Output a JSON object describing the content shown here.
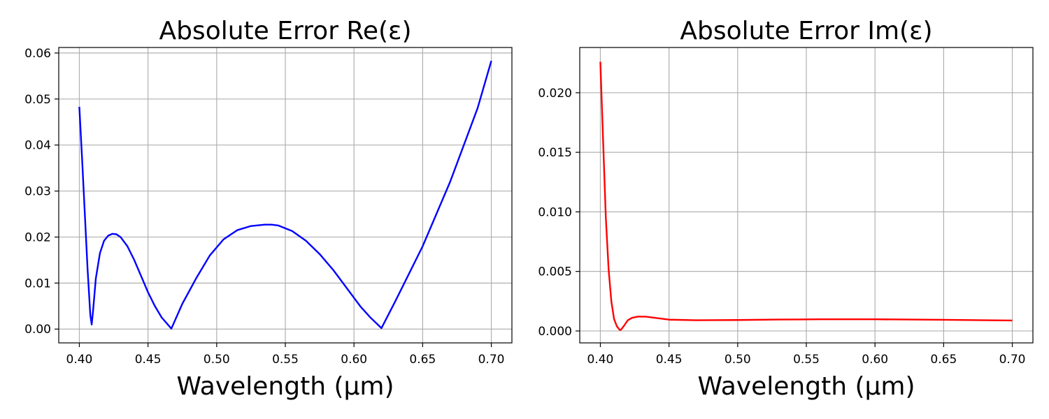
{
  "chart_data": [
    {
      "type": "line",
      "title": "Absolute Error Re(ε)",
      "xlabel": "Wavelength (µm)",
      "ylabel": "",
      "xlim": [
        0.385,
        0.715
      ],
      "ylim": [
        -0.003,
        0.0612
      ],
      "xticks": [
        0.4,
        0.45,
        0.5,
        0.55,
        0.6,
        0.65,
        0.7
      ],
      "xtick_labels": [
        "0.40",
        "0.45",
        "0.50",
        "0.55",
        "0.60",
        "0.65",
        "0.70"
      ],
      "yticks": [
        0.0,
        0.01,
        0.02,
        0.03,
        0.04,
        0.05,
        0.06
      ],
      "ytick_labels": [
        "0.00",
        "0.01",
        "0.02",
        "0.03",
        "0.04",
        "0.05",
        "0.06"
      ],
      "grid": true,
      "series": [
        {
          "color": "#0000ff",
          "x": [
            0.4,
            0.402,
            0.404,
            0.406,
            0.408,
            0.409,
            0.41,
            0.412,
            0.415,
            0.418,
            0.421,
            0.424,
            0.427,
            0.43,
            0.435,
            0.44,
            0.445,
            0.45,
            0.455,
            0.46,
            0.467,
            0.475,
            0.485,
            0.495,
            0.505,
            0.515,
            0.525,
            0.535,
            0.54,
            0.545,
            0.555,
            0.565,
            0.575,
            0.585,
            0.595,
            0.605,
            0.612,
            0.62,
            0.63,
            0.64,
            0.65,
            0.66,
            0.67,
            0.68,
            0.69,
            0.7
          ],
          "y": [
            0.0483,
            0.037,
            0.025,
            0.013,
            0.003,
            0.001,
            0.004,
            0.011,
            0.0165,
            0.0192,
            0.0203,
            0.0207,
            0.0206,
            0.02,
            0.018,
            0.015,
            0.0115,
            0.008,
            0.005,
            0.0025,
            0.0001,
            0.0055,
            0.011,
            0.016,
            0.0195,
            0.0215,
            0.0224,
            0.0227,
            0.0227,
            0.0225,
            0.0213,
            0.0192,
            0.0163,
            0.0128,
            0.0088,
            0.0048,
            0.0025,
            0.0002,
            0.006,
            0.012,
            0.018,
            0.025,
            0.032,
            0.04,
            0.048,
            0.0583
          ]
        }
      ]
    },
    {
      "type": "line",
      "title": "Absolute Error Im(ε)",
      "xlabel": "Wavelength (µm)",
      "ylabel": "",
      "xlim": [
        0.385,
        0.715
      ],
      "ylim": [
        -0.001,
        0.0238
      ],
      "xticks": [
        0.4,
        0.45,
        0.5,
        0.55,
        0.6,
        0.65,
        0.7
      ],
      "xtick_labels": [
        "0.40",
        "0.45",
        "0.50",
        "0.55",
        "0.60",
        "0.65",
        "0.70"
      ],
      "yticks": [
        0.0,
        0.005,
        0.01,
        0.015,
        0.02
      ],
      "ytick_labels": [
        "0.000",
        "0.005",
        "0.010",
        "0.015",
        "0.020"
      ],
      "grid": true,
      "series": [
        {
          "color": "#ff0000",
          "x": [
            0.4,
            0.402,
            0.404,
            0.406,
            0.408,
            0.41,
            0.412,
            0.414,
            0.415,
            0.417,
            0.42,
            0.423,
            0.427,
            0.433,
            0.44,
            0.45,
            0.47,
            0.5,
            0.53,
            0.56,
            0.6,
            0.65,
            0.7
          ],
          "y": [
            0.0226,
            0.016,
            0.0095,
            0.0052,
            0.0025,
            0.001,
            0.0004,
            0.0001,
            0.0001,
            0.0004,
            0.0009,
            0.0011,
            0.0012,
            0.0012,
            0.0011,
            0.00095,
            0.0009,
            0.00092,
            0.00096,
            0.00098,
            0.00098,
            0.00094,
            0.00088
          ]
        }
      ]
    }
  ]
}
